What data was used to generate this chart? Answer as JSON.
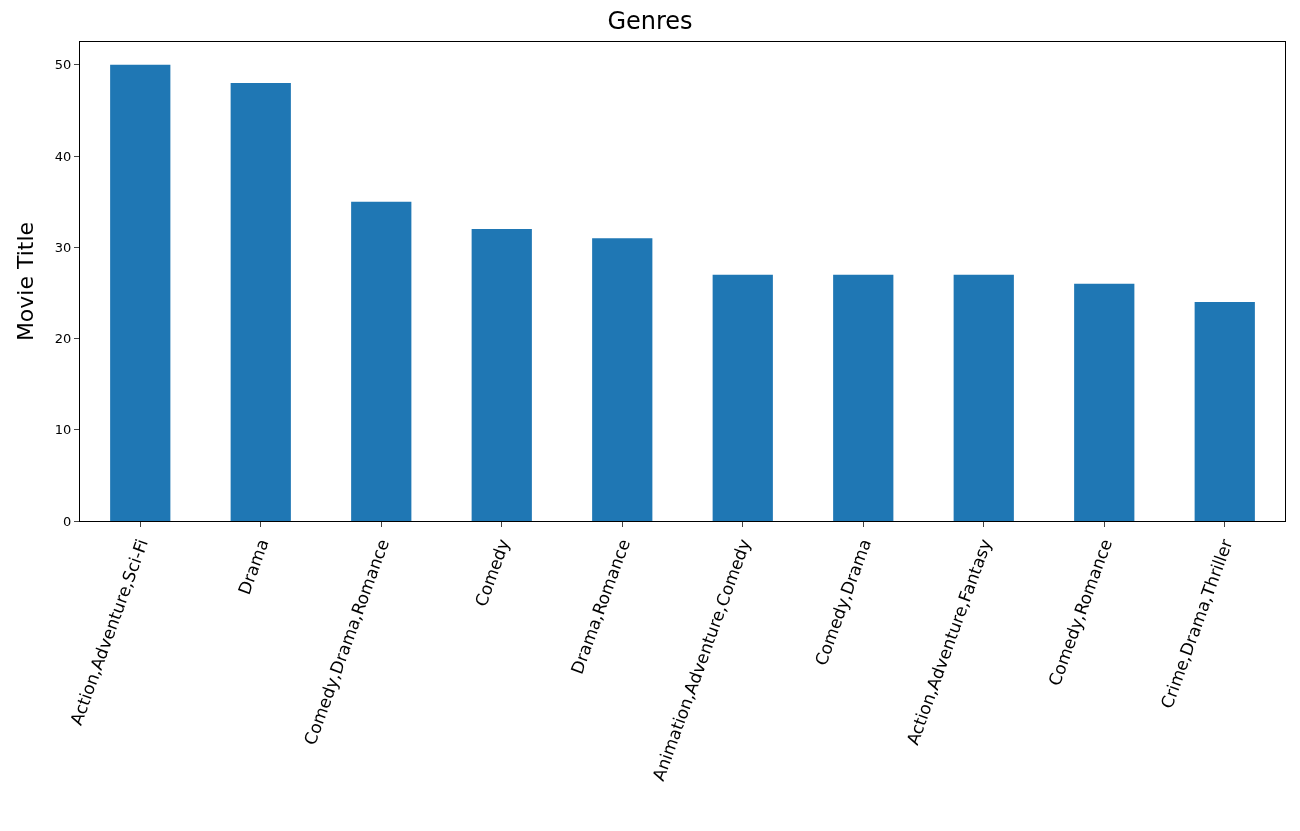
{
  "chart_data": {
    "type": "bar",
    "title": "Genres",
    "ylabel": "Movie Title",
    "categories": [
      "Action,Adventure,Sci-Fi",
      "Drama",
      "Comedy,Drama,Romance",
      "Comedy",
      "Drama,Romance",
      "Animation,Adventure,Comedy",
      "Comedy,Drama",
      "Action,Adventure,Fantasy",
      "Comedy,Romance",
      "Crime,Drama,Thriller"
    ],
    "values": [
      50,
      48,
      35,
      32,
      31,
      27,
      27,
      27,
      26,
      24
    ],
    "color": "#1f77b4",
    "ylim": [
      0,
      52.5
    ],
    "yticks": [
      0,
      10,
      20,
      30,
      40,
      50
    ]
  }
}
